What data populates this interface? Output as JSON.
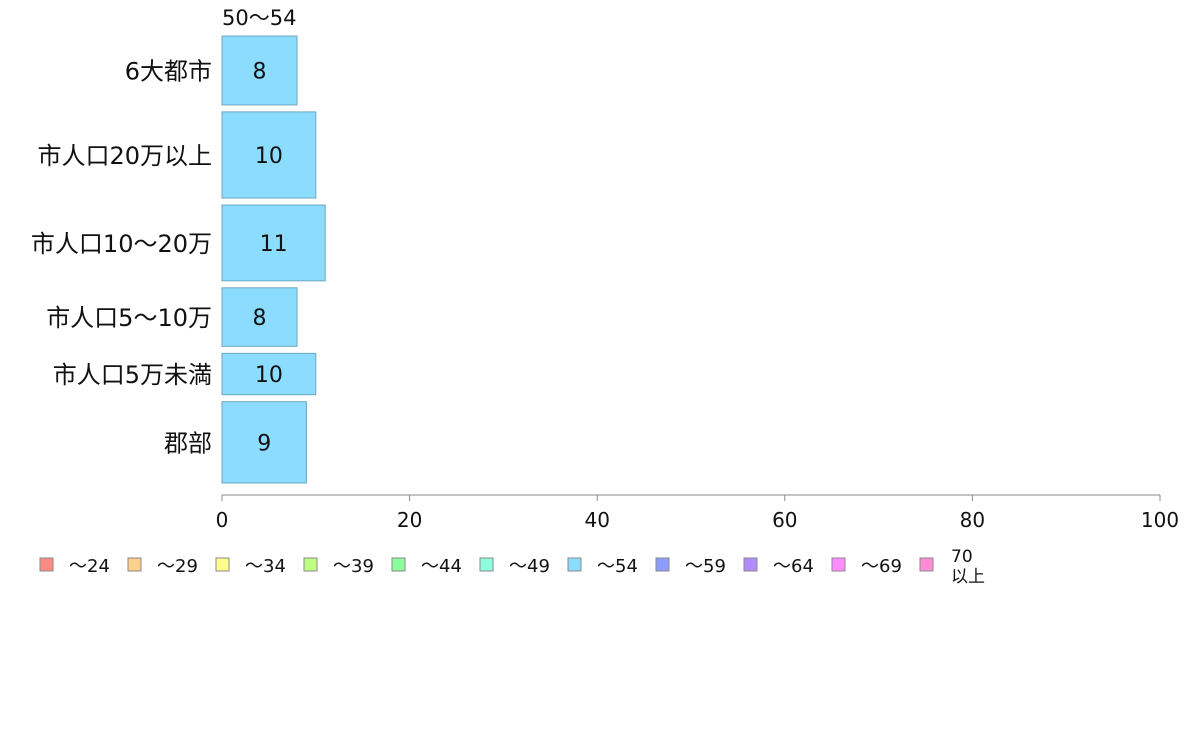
{
  "chart_data": {
    "type": "bar",
    "orientation": "horizontal",
    "series_header": "50〜54",
    "categories": [
      "6大都市",
      "市人口20万以上",
      "市人口10〜20万",
      "市人口5〜10万",
      "市人口5万未満",
      "郡部"
    ],
    "values": [
      8,
      10,
      11,
      8,
      10,
      9
    ],
    "bar_weights": [
      1.0,
      1.25,
      1.1,
      0.85,
      0.6,
      1.18
    ],
    "xlim": [
      0,
      100
    ],
    "xticks": [
      0,
      20,
      40,
      60,
      80,
      100
    ],
    "grid": false,
    "legend": {
      "placement": "bottom-left",
      "items": [
        {
          "label": "〜24",
          "color": "#ff8b84"
        },
        {
          "label": "〜29",
          "color": "#ffcf8c"
        },
        {
          "label": "〜34",
          "color": "#ffff8c"
        },
        {
          "label": "〜39",
          "color": "#bfff84"
        },
        {
          "label": "〜44",
          "color": "#8cff9c"
        },
        {
          "label": "〜49",
          "color": "#8cffdc"
        },
        {
          "label": "〜54",
          "color": "#8cdcff"
        },
        {
          "label": "〜59",
          "color": "#8c9cff"
        },
        {
          "label": "〜64",
          "color": "#b08cff"
        },
        {
          "label": "〜69",
          "color": "#ff8cff"
        },
        {
          "label": "70\n以上",
          "color": "#ff8cd4"
        }
      ]
    },
    "bar_color": "#8cdcff",
    "bar_stroke": "#6aa8c0",
    "axis_color": "#888888"
  }
}
